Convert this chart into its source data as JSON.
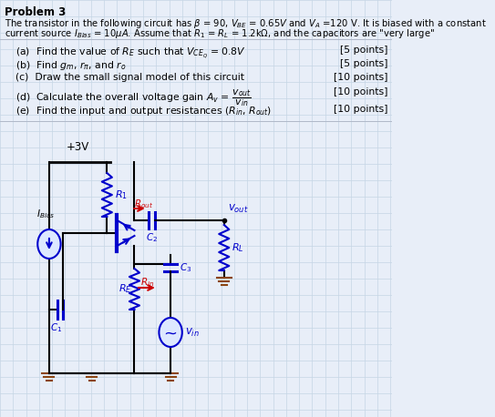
{
  "background_color": "#e8eef8",
  "grid_color": "#c5d5e5",
  "black": "#000000",
  "blue": "#0000cc",
  "red": "#cc0000",
  "brown": "#8B4513",
  "vcc_label": "+3V",
  "ibias_label": "$I_{Bias}$",
  "r1_label": "$R_1$",
  "rout_label": "$R_{out}$",
  "vout_label": "$v_{out}$",
  "rl_label": "$R_L$",
  "c2_label": "$C_2$",
  "rin_label": "$R_{in}$",
  "c3_label": "$C_3$",
  "re_label": "$R_E$",
  "c1_label": "$C_1$",
  "vin_label": "$v_{in}$"
}
